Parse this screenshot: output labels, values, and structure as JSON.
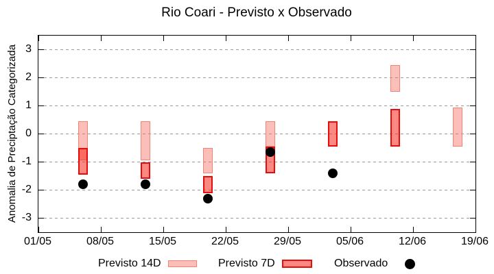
{
  "chart_data": {
    "type": "bar",
    "subtype": "range-bars-with-scatter",
    "title": "Rio Coari - Previsto x Observado",
    "xlabel": "",
    "ylabel": "Anomalia de Preciptação Categorizada",
    "ylim": [
      -3.5,
      3.5
    ],
    "yticks": [
      3,
      2,
      1,
      0,
      -1,
      -2,
      -3
    ],
    "xlim_days": [
      0,
      49
    ],
    "xtick_labels": [
      "01/05",
      "08/05",
      "15/05",
      "22/05",
      "29/05",
      "05/06",
      "12/06",
      "19/06"
    ],
    "xtick_days": [
      0,
      7,
      14,
      21,
      28,
      35,
      42,
      49
    ],
    "grid": "horizontal dotted gray lines at every integer tick",
    "legend_position": "bottom center, outside plot",
    "axis_color": "#000000",
    "grid_color": "#9a9a9a",
    "series": [
      {
        "name": "Previsto 14D",
        "type": "range-bar",
        "fill": "rgba(245,100,85,0.42)",
        "border": "#f08372",
        "points": [
          {
            "date": "06/05",
            "day": 5,
            "high": 0.45,
            "low": -0.95
          },
          {
            "date": "13/05",
            "day": 12,
            "high": 0.45,
            "low": -0.95
          },
          {
            "date": "20/05",
            "day": 19,
            "high": -0.5,
            "low": -1.4
          },
          {
            "date": "27/05",
            "day": 26,
            "high": 0.45,
            "low": -0.45
          },
          {
            "date": "10/06",
            "day": 40,
            "high": 2.45,
            "low": 1.5
          },
          {
            "date": "17/06",
            "day": 47,
            "high": 0.95,
            "low": -0.45
          }
        ]
      },
      {
        "name": "Previsto 7D",
        "type": "range-bar",
        "fill": "rgba(250,45,30,0.56)",
        "border": "#e60c0c",
        "points": [
          {
            "date": "06/05",
            "day": 5,
            "high": -0.5,
            "low": -1.45
          },
          {
            "date": "13/05",
            "day": 12,
            "high": -1.0,
            "low": -1.6
          },
          {
            "date": "20/05",
            "day": 19,
            "high": -1.5,
            "low": -2.1
          },
          {
            "date": "27/05",
            "day": 26,
            "high": -0.45,
            "low": -1.4
          },
          {
            "date": "03/06",
            "day": 33,
            "high": 0.45,
            "low": -0.45
          },
          {
            "date": "10/06",
            "day": 40,
            "high": 0.9,
            "low": -0.45
          }
        ]
      },
      {
        "name": "Observado",
        "type": "scatter",
        "color": "#000000",
        "points": [
          {
            "date": "06/05",
            "day": 5,
            "value": -1.8
          },
          {
            "date": "13/05",
            "day": 12,
            "value": -1.8
          },
          {
            "date": "20/05",
            "day": 19,
            "value": -2.3
          },
          {
            "date": "27/05",
            "day": 26,
            "value": -0.65
          },
          {
            "date": "03/06",
            "day": 33,
            "value": -1.4
          }
        ]
      }
    ]
  }
}
